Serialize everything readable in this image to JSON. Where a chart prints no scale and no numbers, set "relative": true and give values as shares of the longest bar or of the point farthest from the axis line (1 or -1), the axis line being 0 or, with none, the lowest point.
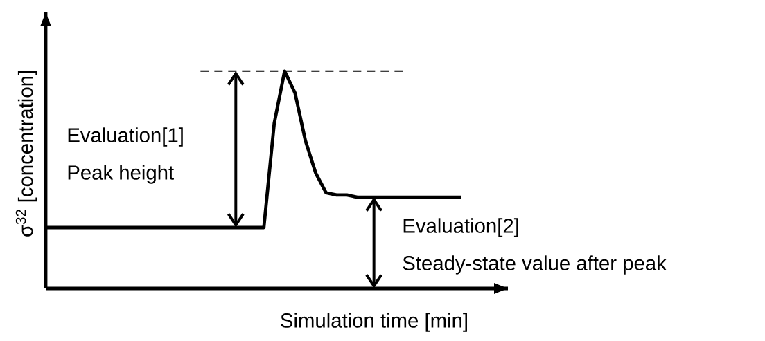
{
  "chart_data": {
    "type": "line",
    "relative": true,
    "xlabel": "Simulation time [min]",
    "ylabel": "σ$^{32}$ [concentration]",
    "categories": [
      null,
      null,
      null,
      null,
      null,
      null,
      null,
      null,
      null,
      null,
      null,
      null,
      null,
      null,
      null,
      null,
      null,
      null,
      null,
      null,
      null,
      null,
      null,
      null,
      null,
      null,
      null,
      null,
      null,
      null,
      null,
      null,
      null,
      null,
      null,
      null,
      null,
      null,
      null,
      null,
      null
    ],
    "series": [
      {
        "color": "#000000",
        "values": [
          0.28,
          0.28,
          0.28,
          0.28,
          0.28,
          0.28,
          0.28,
          0.28,
          0.28,
          0.28,
          0.28,
          0.28,
          0.28,
          0.28,
          0.28,
          0.28,
          0.28,
          0.28,
          0.28,
          0.28,
          0.28,
          0.28,
          0.76,
          1,
          0.9,
          0.68,
          0.53,
          0.44,
          0.43,
          0.43,
          0.42,
          0.42,
          0.42,
          0.42,
          0.42,
          0.42,
          0.42,
          0.42,
          0.42,
          0.42,
          0.42
        ]
      }
    ],
    "ref_lines": [
      {
        "axis": "y",
        "value": 1,
        "line_style": "dashed",
        "color": "#000000"
      }
    ],
    "annotations": [
      "Evaluation[1]",
      "Peak height",
      "Evaluation[2]",
      "Steady-state value after peak"
    ],
    "marker": "none",
    "line_style": "solid"
  }
}
